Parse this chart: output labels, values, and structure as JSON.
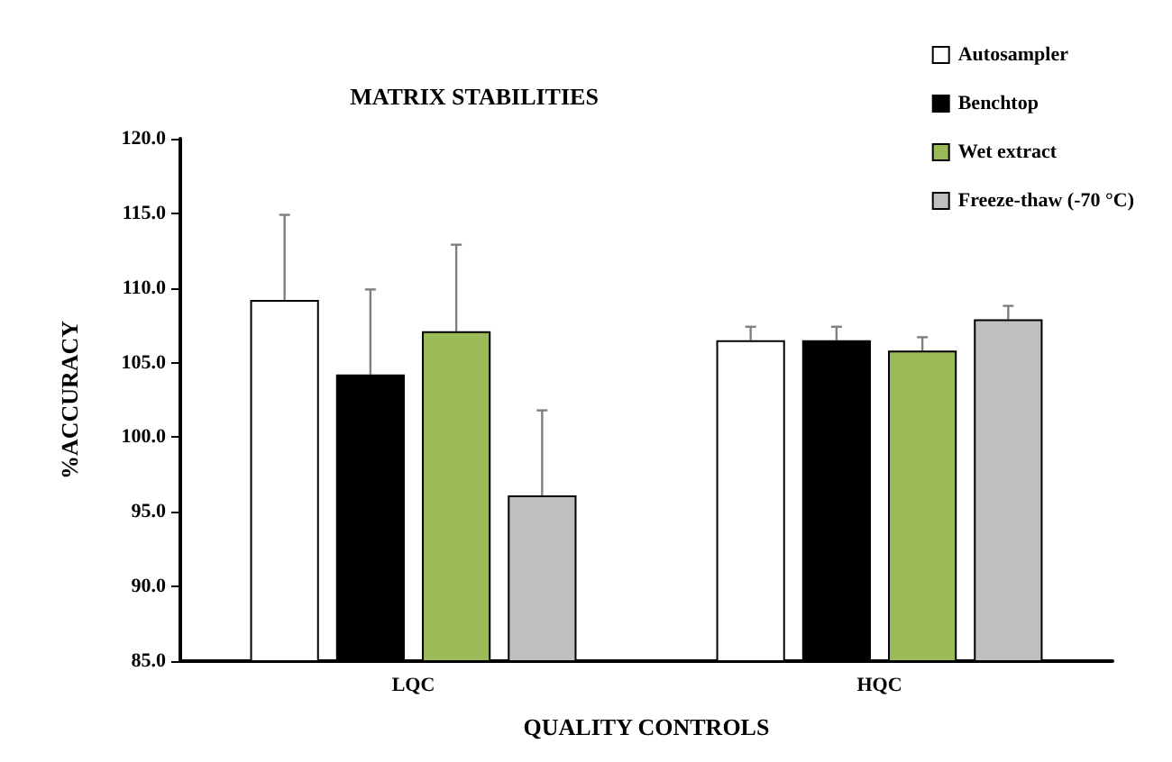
{
  "chart_data": {
    "type": "bar",
    "title": "MATRIX STABILITIES",
    "xlabel": "QUALITY CONTROLS",
    "ylabel": "%ACCURACY",
    "categories": [
      "LQC",
      "HQC"
    ],
    "series": [
      {
        "name": "Autosampler",
        "color": "#ffffff",
        "values": [
          109.2,
          106.5
        ],
        "errors": [
          5.7,
          0.9
        ]
      },
      {
        "name": "Benchtop",
        "color": "#000000",
        "values": [
          104.2,
          106.5
        ],
        "errors": [
          5.7,
          0.9
        ]
      },
      {
        "name": "Wet extract",
        "color": "#9bbb59",
        "values": [
          107.1,
          105.8
        ],
        "errors": [
          5.8,
          0.9
        ]
      },
      {
        "name": "Freeze-thaw (-70 °C)",
        "color": "#bfbfbf",
        "values": [
          96.1,
          107.9
        ],
        "errors": [
          5.7,
          0.9
        ]
      }
    ],
    "ylim": [
      85,
      120
    ],
    "yticks": [
      {
        "value": 85,
        "label": "85.0"
      },
      {
        "value": 90,
        "label": "90.0"
      },
      {
        "value": 95,
        "label": "95.0"
      },
      {
        "value": 100,
        "label": "100.0"
      },
      {
        "value": 105,
        "label": "105.0"
      },
      {
        "value": 110,
        "label": "110.0"
      },
      {
        "value": 115,
        "label": "115.0"
      },
      {
        "value": 120,
        "label": "120.0"
      }
    ],
    "grid": false,
    "legend": "top right"
  }
}
